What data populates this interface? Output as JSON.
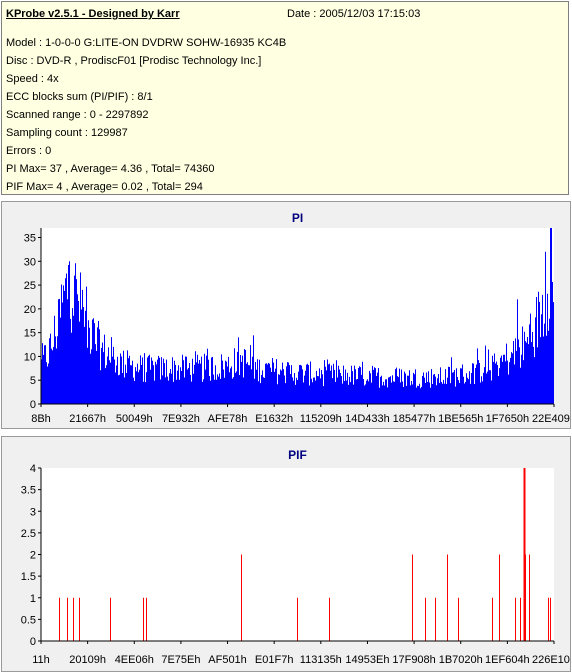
{
  "info": {
    "title": "KProbe v2.5.1 - Designed by Karr",
    "date": "Date : 2005/12/03 17:15:03",
    "lines": [
      "Model : 1-0-0-0 G:LITE-ON DVDRW SOHW-16935 KC4B",
      "Disc : DVD-R , ProdiscF01 [Prodisc Technology Inc.]",
      "Speed : 4x",
      "ECC blocks sum (PI/PIF) : 8/1",
      "Scanned range : 0 - 2297892",
      "Sampling count : 129987",
      "Errors : 0",
      "PI Max= 37 , Average= 4.36 , Total= 74360",
      "PIF Max= 4 , Average= 0.02 , Total= 294"
    ]
  },
  "chart_data": [
    {
      "type": "bar",
      "title": "PI",
      "color": "#0000ff",
      "ylim": [
        0,
        37
      ],
      "yticks": [
        0,
        5,
        10,
        15,
        20,
        25,
        30,
        35
      ],
      "xtick_labels": [
        "8Bh",
        "21667h",
        "50049h",
        "7E932h",
        "AFE78h",
        "E1632h",
        "115209h",
        "14D433h",
        "185477h",
        "1BE565h",
        "1F7650h",
        "22E409h"
      ],
      "profile": [
        [
          0,
          9
        ],
        [
          0.02,
          13
        ],
        [
          0.04,
          22
        ],
        [
          0.055,
          28
        ],
        [
          0.07,
          24
        ],
        [
          0.09,
          17
        ],
        [
          0.12,
          12
        ],
        [
          0.16,
          9
        ],
        [
          0.2,
          8
        ],
        [
          0.3,
          8
        ],
        [
          0.36,
          8.5
        ],
        [
          0.39,
          10
        ],
        [
          0.42,
          8
        ],
        [
          0.5,
          7
        ],
        [
          0.6,
          6.5
        ],
        [
          0.7,
          6
        ],
        [
          0.78,
          6
        ],
        [
          0.84,
          7
        ],
        [
          0.88,
          8.5
        ],
        [
          0.92,
          11
        ],
        [
          0.95,
          14
        ],
        [
          0.97,
          19
        ],
        [
          0.985,
          24
        ],
        [
          1.0,
          35
        ]
      ],
      "spikes": [
        [
          0.055,
          30
        ],
        [
          0.065,
          27
        ],
        [
          0.08,
          24
        ],
        [
          0.385,
          14
        ],
        [
          0.93,
          22
        ],
        [
          0.955,
          19
        ],
        [
          0.985,
          32
        ],
        [
          0.995,
          37
        ]
      ]
    },
    {
      "type": "bar",
      "title": "PIF",
      "color": "#ff0000",
      "ylim": [
        0,
        4
      ],
      "yticks": [
        0,
        0.5,
        1,
        1.5,
        2,
        2.5,
        3,
        3.5,
        4
      ],
      "xtick_labels": [
        "11h",
        "20109h",
        "4EE06h",
        "7E75Eh",
        "AF501h",
        "E01F7h",
        "113135h",
        "14953Eh",
        "17F908h",
        "1B7020h",
        "1EF604h",
        "226E10h"
      ],
      "events": [
        [
          0.035,
          1
        ],
        [
          0.05,
          1
        ],
        [
          0.062,
          1
        ],
        [
          0.075,
          1
        ],
        [
          0.135,
          1
        ],
        [
          0.2,
          1
        ],
        [
          0.205,
          1
        ],
        [
          0.39,
          2
        ],
        [
          0.5,
          1
        ],
        [
          0.562,
          1
        ],
        [
          0.725,
          2
        ],
        [
          0.75,
          1
        ],
        [
          0.77,
          1
        ],
        [
          0.792,
          2
        ],
        [
          0.815,
          1
        ],
        [
          0.88,
          1
        ],
        [
          0.895,
          2
        ],
        [
          0.925,
          1
        ],
        [
          0.935,
          1
        ],
        [
          0.943,
          4
        ],
        [
          0.946,
          2
        ],
        [
          0.953,
          2
        ],
        [
          0.99,
          1
        ],
        [
          0.995,
          1
        ]
      ]
    }
  ]
}
